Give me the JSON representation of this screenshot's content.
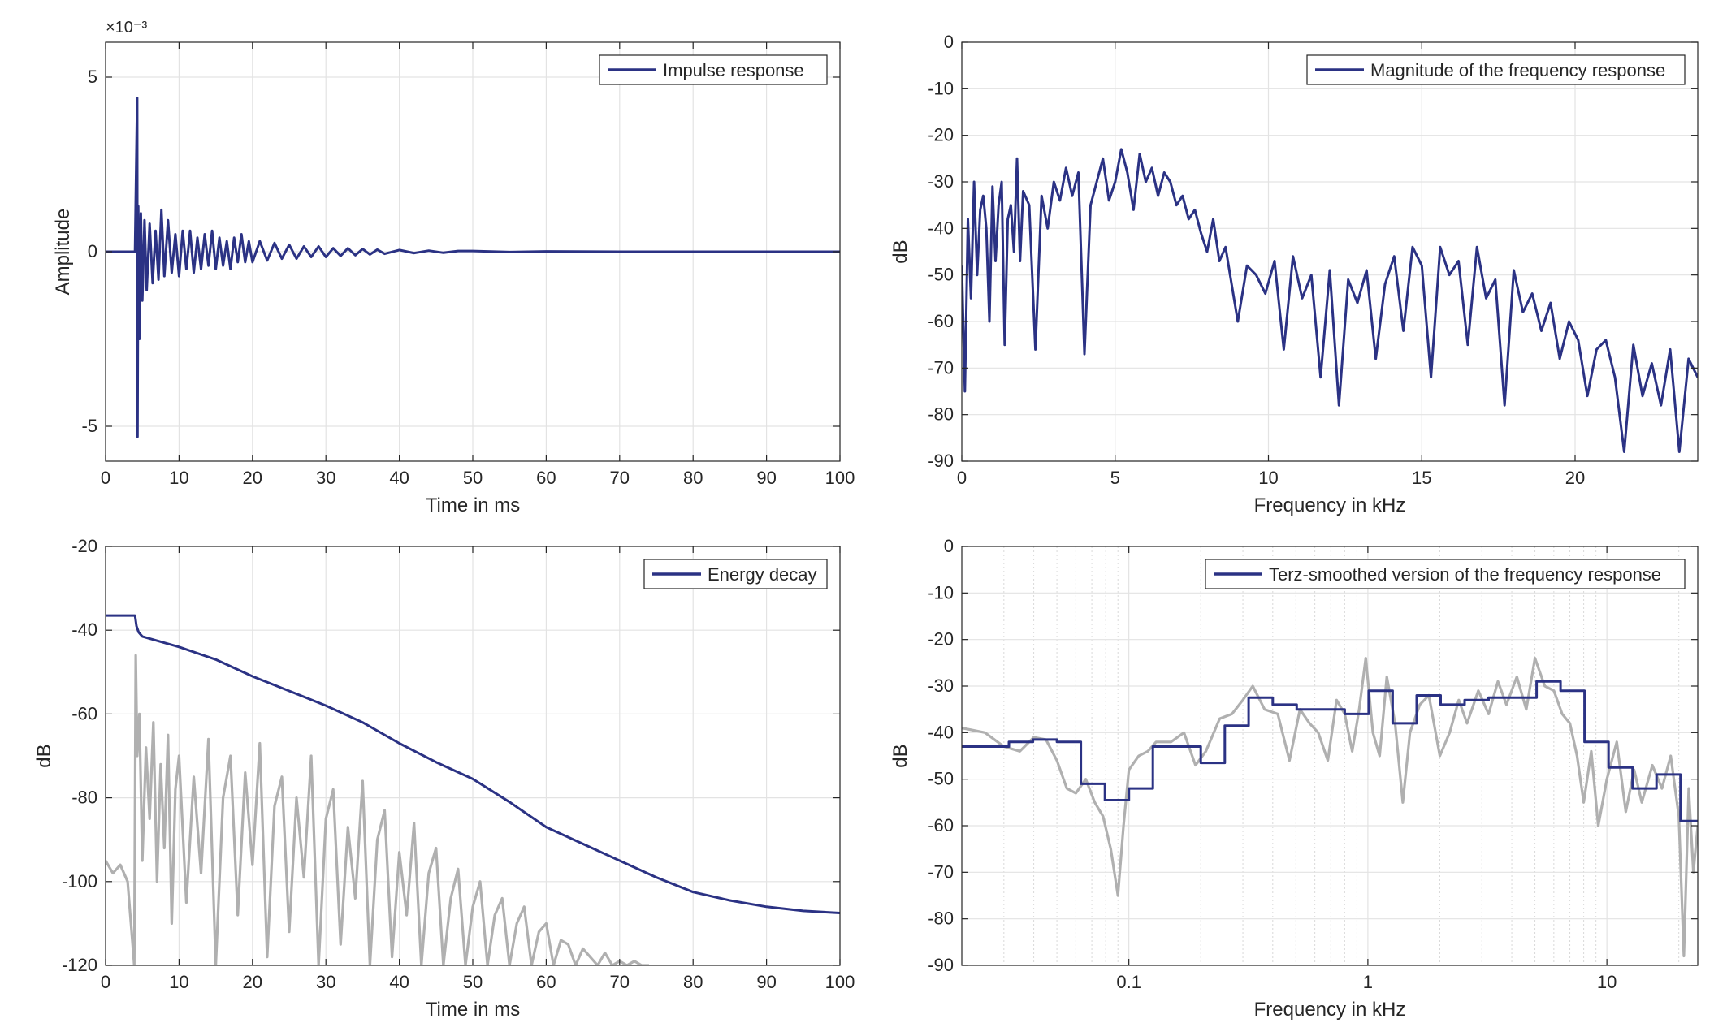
{
  "colors": {
    "series": "#2b3284",
    "gray": "#b0b0b0",
    "grid": "#e3e3e3",
    "axis": "#262626"
  },
  "chart_data": [
    {
      "type": "line",
      "title": "",
      "xlabel": "Time in ms",
      "ylabel": "Amplitude",
      "exponent_label": "×10⁻³",
      "xlim": [
        0,
        100
      ],
      "ylim": [
        -6,
        6
      ],
      "xticks": [
        0,
        10,
        20,
        30,
        40,
        50,
        60,
        70,
        80,
        90,
        100
      ],
      "yticks": [
        -5,
        0,
        5
      ],
      "ytick_labels": [
        "-5",
        "0",
        "5"
      ],
      "grid": true,
      "legend": {
        "location": "top-right",
        "entries": [
          "Impulse response"
        ]
      },
      "series": [
        {
          "name": "Impulse response",
          "color": "#2b3284",
          "x": [
            0,
            2,
            4.0,
            4.3,
            4.35,
            4.45,
            4.6,
            4.8,
            5.0,
            5.3,
            5.6,
            6.0,
            6.4,
            6.8,
            7.2,
            7.6,
            8.0,
            8.5,
            9.0,
            9.5,
            10.0,
            10.5,
            11.0,
            11.5,
            12.0,
            12.5,
            13.0,
            13.5,
            14.0,
            14.5,
            15.0,
            15.5,
            16.0,
            16.5,
            17.0,
            17.5,
            18.0,
            18.5,
            19.0,
            19.5,
            20.0,
            21.0,
            22.0,
            23.0,
            24.0,
            25.0,
            26.0,
            27.0,
            28.0,
            29.0,
            30.0,
            31.0,
            32.0,
            33.0,
            34.0,
            35.0,
            36.0,
            37.0,
            38.0,
            40.0,
            42.0,
            44.0,
            46.0,
            48.0,
            50.0,
            55.0,
            60.0,
            70.0,
            80.0,
            90.0,
            100.0
          ],
          "y": [
            0,
            0,
            0,
            4.4,
            -5.3,
            1.3,
            -2.5,
            1.1,
            -1.4,
            0.9,
            -1.1,
            0.8,
            -0.9,
            0.6,
            -0.8,
            1.2,
            -0.7,
            0.9,
            -0.6,
            0.5,
            -0.7,
            0.6,
            -0.5,
            0.6,
            -0.6,
            0.4,
            -0.5,
            0.5,
            -0.4,
            0.6,
            -0.5,
            0.4,
            -0.4,
            0.3,
            -0.5,
            0.4,
            -0.3,
            0.5,
            -0.3,
            0.3,
            -0.3,
            0.3,
            -0.25,
            0.25,
            -0.2,
            0.2,
            -0.2,
            0.15,
            -0.15,
            0.15,
            -0.15,
            0.1,
            -0.12,
            0.1,
            -0.1,
            0.08,
            -0.08,
            0.06,
            -0.06,
            0.05,
            -0.04,
            0.03,
            -0.03,
            0.02,
            0.02,
            -0.01,
            0.01,
            0,
            0,
            0,
            0
          ]
        }
      ]
    },
    {
      "type": "line",
      "title": "",
      "xlabel": "Frequency in kHz",
      "ylabel": "dB",
      "xlim": [
        0,
        24
      ],
      "ylim": [
        -90,
        0
      ],
      "xticks": [
        0,
        5,
        10,
        15,
        20
      ],
      "yticks": [
        0,
        -10,
        -20,
        -30,
        -40,
        -50,
        -60,
        -70,
        -80,
        -90
      ],
      "grid": true,
      "legend": {
        "location": "top-right",
        "entries": [
          "Magnitude of the frequency response"
        ]
      },
      "series": [
        {
          "name": "Magnitude of the frequency response",
          "color": "#2b3284",
          "x": [
            0.0,
            0.1,
            0.2,
            0.3,
            0.4,
            0.5,
            0.6,
            0.7,
            0.8,
            0.9,
            1.0,
            1.1,
            1.2,
            1.3,
            1.4,
            1.5,
            1.6,
            1.7,
            1.8,
            1.9,
            2.0,
            2.2,
            2.4,
            2.6,
            2.8,
            3.0,
            3.2,
            3.4,
            3.6,
            3.8,
            4.0,
            4.2,
            4.4,
            4.6,
            4.8,
            5.0,
            5.2,
            5.4,
            5.6,
            5.8,
            6.0,
            6.2,
            6.4,
            6.6,
            6.8,
            7.0,
            7.2,
            7.4,
            7.6,
            7.8,
            8.0,
            8.2,
            8.4,
            8.6,
            8.8,
            9.0,
            9.3,
            9.6,
            9.9,
            10.2,
            10.5,
            10.8,
            11.1,
            11.4,
            11.7,
            12.0,
            12.3,
            12.6,
            12.9,
            13.2,
            13.5,
            13.8,
            14.1,
            14.4,
            14.7,
            15.0,
            15.3,
            15.6,
            15.9,
            16.2,
            16.5,
            16.8,
            17.1,
            17.4,
            17.7,
            18.0,
            18.3,
            18.6,
            18.9,
            19.2,
            19.5,
            19.8,
            20.1,
            20.4,
            20.7,
            21.0,
            21.3,
            21.6,
            21.9,
            22.2,
            22.5,
            22.8,
            23.1,
            23.4,
            23.7,
            24.0
          ],
          "y": [
            -48,
            -75,
            -38,
            -55,
            -30,
            -50,
            -36,
            -33,
            -40,
            -60,
            -31,
            -47,
            -35,
            -30,
            -65,
            -38,
            -35,
            -45,
            -25,
            -47,
            -32,
            -35,
            -66,
            -33,
            -40,
            -30,
            -34,
            -27,
            -33,
            -28,
            -67,
            -35,
            -30,
            -25,
            -34,
            -30,
            -23,
            -28,
            -36,
            -24,
            -30,
            -27,
            -33,
            -28,
            -30,
            -35,
            -33,
            -38,
            -36,
            -41,
            -45,
            -38,
            -47,
            -44,
            -52,
            -60,
            -48,
            -50,
            -54,
            -47,
            -66,
            -46,
            -55,
            -50,
            -72,
            -49,
            -78,
            -51,
            -56,
            -49,
            -68,
            -52,
            -46,
            -62,
            -44,
            -48,
            -72,
            -44,
            -50,
            -47,
            -65,
            -44,
            -55,
            -51,
            -78,
            -49,
            -58,
            -54,
            -62,
            -56,
            -68,
            -60,
            -64,
            -76,
            -66,
            -64,
            -72,
            -88,
            -65,
            -76,
            -69,
            -78,
            -66,
            -88,
            -68,
            -72
          ]
        }
      ]
    },
    {
      "type": "line",
      "title": "",
      "xlabel": "Time in ms",
      "ylabel": "dB",
      "xlim": [
        0,
        100
      ],
      "ylim": [
        -120,
        -20
      ],
      "xticks": [
        0,
        10,
        20,
        30,
        40,
        50,
        60,
        70,
        80,
        90,
        100
      ],
      "yticks": [
        -20,
        -40,
        -60,
        -80,
        -100,
        -120
      ],
      "grid": true,
      "legend": {
        "location": "top-right",
        "entries": [
          "Energy decay"
        ]
      },
      "series": [
        {
          "name": "Energy decay",
          "color": "#2b3284",
          "x": [
            0,
            2,
            4.0,
            4.2,
            4.5,
            5,
            10,
            15,
            20,
            25,
            30,
            35,
            40,
            45,
            50,
            55,
            60,
            65,
            70,
            75,
            80,
            85,
            90,
            95,
            100
          ],
          "y": [
            -36.5,
            -36.5,
            -36.5,
            -39,
            -40.5,
            -41.5,
            -44,
            -47,
            -51,
            -54.5,
            -58,
            -62,
            -67,
            -71.5,
            -75.5,
            -81,
            -87,
            -91,
            -95,
            -99,
            -102.5,
            -104.5,
            -106,
            -107,
            -107.5
          ]
        },
        {
          "name": "",
          "color": "#b0b0b0",
          "x": [
            0,
            1,
            2,
            3,
            3.9,
            4.1,
            4.3,
            4.6,
            5.0,
            5.5,
            6.0,
            6.5,
            7.0,
            7.5,
            8.0,
            8.5,
            9.0,
            9.5,
            10,
            11,
            12,
            13,
            14,
            15,
            16,
            17,
            18,
            19,
            20,
            21,
            22,
            23,
            24,
            25,
            26,
            27,
            28,
            29,
            30,
            31,
            32,
            33,
            34,
            35,
            36,
            37,
            38,
            39,
            40,
            41,
            42,
            43,
            44,
            45,
            46,
            47,
            48,
            49,
            50,
            51,
            52,
            53,
            54,
            55,
            56,
            57,
            58,
            59,
            60,
            61,
            62,
            63,
            64,
            65,
            66,
            67,
            68,
            69,
            70,
            71,
            72,
            73,
            74
          ],
          "y": [
            -95,
            -98,
            -96,
            -100,
            -120,
            -46,
            -70,
            -60,
            -95,
            -68,
            -85,
            -62,
            -100,
            -72,
            -92,
            -65,
            -110,
            -78,
            -70,
            -105,
            -75,
            -98,
            -66,
            -120,
            -80,
            -70,
            -108,
            -74,
            -96,
            -67,
            -118,
            -82,
            -75,
            -112,
            -80,
            -99,
            -70,
            -120,
            -85,
            -78,
            -115,
            -87,
            -104,
            -76,
            -120,
            -90,
            -83,
            -118,
            -93,
            -108,
            -86,
            -120,
            -98,
            -92,
            -120,
            -104,
            -97,
            -120,
            -106,
            -100,
            -120,
            -108,
            -104,
            -120,
            -110,
            -106,
            -120,
            -112,
            -110,
            -120,
            -114,
            -115,
            -120,
            -116,
            -118,
            -120,
            -117,
            -120,
            -119,
            -120,
            -119,
            -120,
            -120
          ]
        }
      ]
    },
    {
      "type": "line",
      "title": "",
      "xlabel": "Frequency in kHz",
      "ylabel": "dB",
      "xscale": "log",
      "xlim": [
        0.02,
        24
      ],
      "ylim": [
        -90,
        0
      ],
      "xticks": [
        0.1,
        1,
        10
      ],
      "xtick_labels": [
        "0.1",
        "1",
        "10"
      ],
      "yticks": [
        0,
        -10,
        -20,
        -30,
        -40,
        -50,
        -60,
        -70,
        -80,
        -90
      ],
      "grid": true,
      "legend": {
        "location": "top-right",
        "entries": [
          "Terz-smoothed version of the frequency response"
        ]
      },
      "series": [
        {
          "name": "Terz-smoothed version of the frequency response",
          "color": "#2b3284",
          "step": true,
          "x": [
            0.02,
            0.0315,
            0.0397,
            0.05,
            0.063,
            0.0794,
            0.1,
            0.126,
            0.159,
            0.2,
            0.252,
            0.317,
            0.4,
            0.504,
            0.635,
            0.8,
            1.008,
            1.27,
            1.6,
            2.016,
            2.54,
            3.2,
            4.032,
            5.08,
            6.4,
            8.064,
            10.16,
            12.8,
            16.128,
            20.32,
            24
          ],
          "y": [
            -43,
            -42,
            -41.5,
            -42,
            -51,
            -54.5,
            -52,
            -43,
            -43,
            -46.5,
            -38.5,
            -32.5,
            -34,
            -35,
            -35,
            -36,
            -31,
            -38,
            -32,
            -34,
            -33,
            -32.5,
            -32.5,
            -29,
            -31,
            -42,
            -47.5,
            -52,
            -49,
            -59,
            -59
          ]
        },
        {
          "name": "",
          "color": "#b0b0b0",
          "x": [
            0.02,
            0.025,
            0.03,
            0.035,
            0.04,
            0.045,
            0.05,
            0.055,
            0.06,
            0.066,
            0.072,
            0.078,
            0.084,
            0.09,
            0.095,
            0.1,
            0.11,
            0.12,
            0.13,
            0.15,
            0.17,
            0.19,
            0.21,
            0.24,
            0.27,
            0.3,
            0.33,
            0.37,
            0.42,
            0.47,
            0.52,
            0.57,
            0.62,
            0.68,
            0.74,
            0.8,
            0.86,
            0.92,
            0.98,
            1.05,
            1.12,
            1.2,
            1.3,
            1.4,
            1.5,
            1.65,
            1.8,
            2.0,
            2.2,
            2.4,
            2.6,
            2.9,
            3.2,
            3.5,
            3.8,
            4.2,
            4.6,
            5.0,
            5.5,
            6.0,
            6.5,
            7.0,
            7.5,
            8.0,
            8.6,
            9.2,
            10.0,
            11.0,
            12.0,
            13.0,
            14.0,
            15.5,
            17.0,
            18.5,
            20.0,
            21.0,
            22.0,
            23.0,
            24.0
          ],
          "y": [
            -39,
            -40,
            -43,
            -44,
            -41,
            -41.5,
            -46,
            -52,
            -53,
            -50,
            -55,
            -58,
            -65,
            -75,
            -60,
            -48,
            -45,
            -44,
            -42,
            -42,
            -40,
            -47,
            -44,
            -37,
            -36,
            -33,
            -30,
            -35,
            -36,
            -46,
            -35,
            -38,
            -40,
            -46,
            -33,
            -36,
            -44,
            -35,
            -24,
            -40,
            -45,
            -28,
            -38,
            -55,
            -40,
            -34,
            -32,
            -45,
            -40,
            -33,
            -38,
            -31,
            -36,
            -29,
            -34,
            -28,
            -35,
            -24,
            -30,
            -31,
            -36,
            -38,
            -45,
            -55,
            -44,
            -60,
            -50,
            -42,
            -57,
            -48,
            -55,
            -47,
            -52,
            -45,
            -58,
            -88,
            -52,
            -70,
            -60
          ]
        }
      ]
    }
  ]
}
